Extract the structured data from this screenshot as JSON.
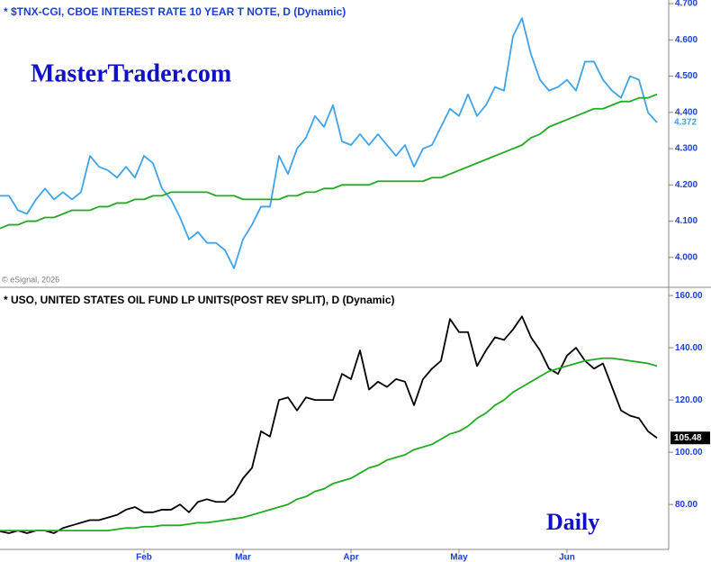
{
  "chart_data": [
    {
      "type": "line",
      "title": "* $TNX-CGI, CBOE INTEREST RATE 10 YEAR T NOTE, D (Dynamic)",
      "title_color": "#1a3fd6",
      "annotation": "MasterTrader.com",
      "source": "© eSignal, 2026",
      "ylim": [
        3.92,
        4.71
      ],
      "yticks": [
        {
          "value": 4.0,
          "label": "4.000"
        },
        {
          "value": 4.1,
          "label": "4.100"
        },
        {
          "value": 4.2,
          "label": "4.200"
        },
        {
          "value": 4.3,
          "label": "4.300"
        },
        {
          "value": 4.4,
          "label": "4.400"
        },
        {
          "value": 4.5,
          "label": "4.500"
        },
        {
          "value": 4.6,
          "label": "4.600"
        },
        {
          "value": 4.7,
          "label": "4.700"
        }
      ],
      "tick_color": "#1a3fd6",
      "series": [
        {
          "color": "#3fa3e8",
          "values": [
            4.17,
            4.17,
            4.13,
            4.12,
            4.16,
            4.19,
            4.16,
            4.18,
            4.16,
            4.18,
            4.28,
            4.25,
            4.24,
            4.22,
            4.25,
            4.22,
            4.28,
            4.26,
            4.19,
            4.16,
            4.11,
            4.05,
            4.07,
            4.04,
            4.04,
            4.02,
            3.97,
            4.05,
            4.09,
            4.14,
            4.14,
            4.28,
            4.23,
            4.3,
            4.33,
            4.39,
            4.36,
            4.42,
            4.32,
            4.31,
            4.34,
            4.31,
            4.34,
            4.31,
            4.28,
            4.31,
            4.25,
            4.3,
            4.31,
            4.36,
            4.41,
            4.39,
            4.45,
            4.39,
            4.42,
            4.47,
            4.46,
            4.61,
            4.66,
            4.56,
            4.49,
            4.46,
            4.47,
            4.49,
            4.46,
            4.54,
            4.54,
            4.49,
            4.46,
            4.44,
            4.5,
            4.49,
            4.4,
            4.372
          ]
        },
        {
          "color": "#22aa22",
          "values": [
            4.08,
            4.09,
            4.09,
            4.1,
            4.1,
            4.11,
            4.11,
            4.12,
            4.13,
            4.13,
            4.13,
            4.14,
            4.14,
            4.15,
            4.15,
            4.16,
            4.16,
            4.17,
            4.17,
            4.18,
            4.18,
            4.18,
            4.18,
            4.18,
            4.17,
            4.17,
            4.17,
            4.16,
            4.16,
            4.16,
            4.16,
            4.16,
            4.17,
            4.17,
            4.18,
            4.18,
            4.19,
            4.19,
            4.2,
            4.2,
            4.2,
            4.2,
            4.21,
            4.21,
            4.21,
            4.21,
            4.21,
            4.21,
            4.22,
            4.22,
            4.23,
            4.24,
            4.25,
            4.26,
            4.27,
            4.28,
            4.29,
            4.3,
            4.31,
            4.33,
            4.34,
            4.36,
            4.37,
            4.38,
            4.39,
            4.4,
            4.41,
            4.41,
            4.42,
            4.43,
            4.43,
            4.44,
            4.44,
            4.45
          ]
        }
      ]
    },
    {
      "type": "line",
      "title": "* USO, UNITED STATES OIL FUND LP UNITS(POST REV SPLIT), D (Dynamic)",
      "title_color": "#000000",
      "annotation": "Daily",
      "categories": [
        null,
        null,
        null,
        null,
        null,
        null,
        null,
        null,
        null,
        null,
        null,
        null,
        null,
        null,
        null,
        null,
        "Feb",
        null,
        null,
        null,
        null,
        null,
        null,
        null,
        null,
        null,
        null,
        "Mar",
        null,
        null,
        null,
        null,
        null,
        null,
        null,
        null,
        null,
        null,
        null,
        "Apr",
        null,
        null,
        null,
        null,
        null,
        null,
        null,
        null,
        null,
        null,
        null,
        "May",
        null,
        null,
        null,
        null,
        null,
        null,
        null,
        null,
        null,
        null,
        null,
        "Jun",
        null,
        null,
        null,
        null,
        null,
        null,
        null,
        null,
        null,
        null
      ],
      "ylim": [
        62.8,
        162.8
      ],
      "yticks": [
        {
          "value": 80,
          "label": "80.00"
        },
        {
          "value": 100,
          "label": "100.00"
        },
        {
          "value": 120,
          "label": "120.00"
        },
        {
          "value": 140,
          "label": "140.00"
        },
        {
          "value": 160,
          "label": "160.00"
        }
      ],
      "tick_color": "#1a3fd6",
      "series": [
        {
          "color": "#000000",
          "values": [
            69.7,
            69,
            70,
            69,
            70,
            70,
            69,
            71,
            72,
            73,
            74,
            74,
            75,
            76,
            78,
            79,
            77,
            77,
            78,
            78,
            80,
            77,
            81,
            82,
            81,
            81,
            84,
            90,
            94,
            108,
            106,
            120,
            121,
            116,
            121,
            120,
            120,
            120,
            130,
            128,
            139,
            124,
            127,
            125,
            128,
            127,
            118,
            128,
            132,
            135,
            151,
            146,
            146,
            133,
            139,
            144,
            143,
            147,
            152,
            144,
            139,
            132,
            130,
            137,
            140,
            135,
            132,
            134,
            125,
            116,
            114,
            113,
            108,
            105.48
          ]
        },
        {
          "color": "#22aa22",
          "values": [
            70,
            70,
            70,
            70,
            70,
            70,
            70,
            70,
            70,
            70,
            70,
            70,
            70,
            70.5,
            71,
            71,
            71.5,
            71.5,
            72,
            72,
            72,
            72.5,
            73,
            73,
            73.5,
            74,
            74.5,
            75,
            76,
            77,
            78,
            79,
            80,
            82,
            83,
            85,
            86,
            88,
            89,
            90,
            92,
            94,
            95,
            97,
            98,
            99,
            101,
            102,
            103,
            105,
            107,
            108,
            110,
            113,
            115,
            118,
            120,
            123,
            125,
            127,
            129,
            131,
            132,
            133,
            134,
            135,
            135.5,
            136,
            136,
            135.5,
            135,
            134.5,
            134,
            133
          ]
        }
      ]
    }
  ]
}
